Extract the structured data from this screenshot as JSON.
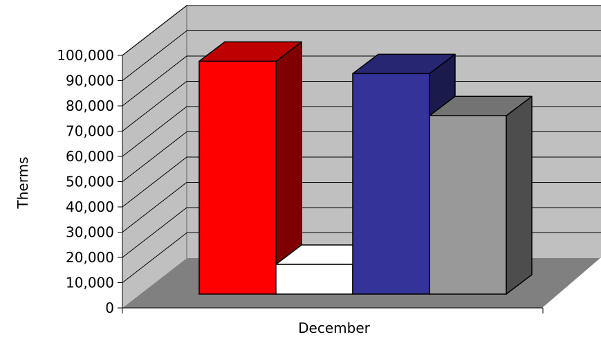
{
  "chart_data": {
    "type": "bar",
    "style": "3d-clustered-column",
    "categories": [
      "December"
    ],
    "series": [
      {
        "values": [
          94000
        ],
        "color": "#ff0000",
        "side_color": "#7f0000",
        "top_color": "#bf0000"
      },
      {
        "values": [
          12000
        ],
        "color": "#ffffff",
        "side_color": "#ffffff",
        "top_color": "#ffffff"
      },
      {
        "values": [
          89000
        ],
        "color": "#333399",
        "side_color": "#1a1a4d",
        "top_color": "#262673"
      },
      {
        "values": [
          72000
        ],
        "color": "#999999",
        "side_color": "#4d4d4d",
        "top_color": "#737373"
      }
    ],
    "ylabel": "Therms",
    "xlabel": "",
    "ylim": [
      0,
      100000
    ],
    "yticks": [
      0,
      10000,
      20000,
      30000,
      40000,
      50000,
      60000,
      70000,
      80000,
      90000,
      100000
    ],
    "ytick_labels": [
      "0",
      "10,000",
      "20,000",
      "30,000",
      "40,000",
      "50,000",
      "60,000",
      "70,000",
      "80,000",
      "90,000",
      "100,000"
    ],
    "grid": true,
    "legend": "none",
    "wall_color": "#c0c0c0",
    "floor_color": "#808080"
  }
}
